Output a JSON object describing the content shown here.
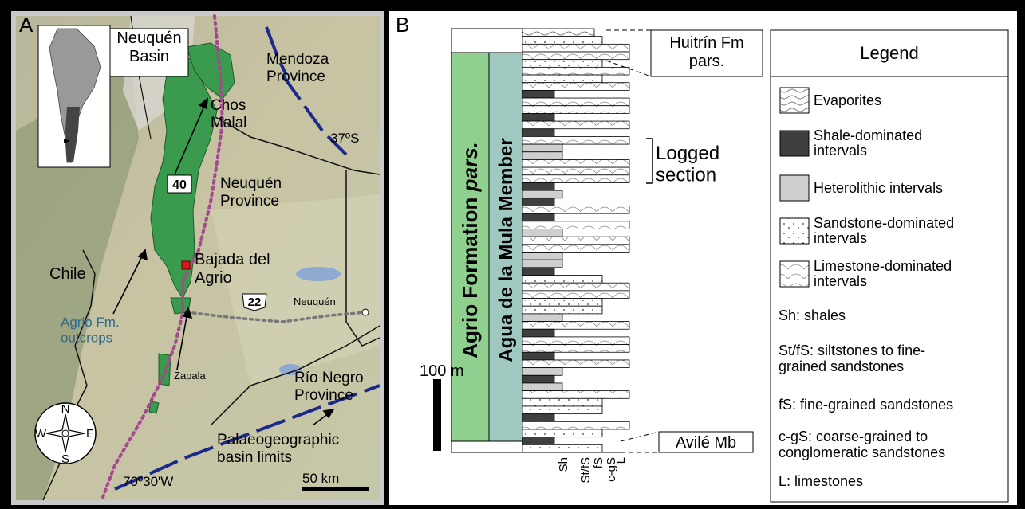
{
  "panel_a": {
    "label": "A",
    "inset_title": "Neuquén\nBasin",
    "place_labels": {
      "mendoza": "Mendoza\nProvince",
      "lat": "37ºS",
      "chos_malal": "Chos\nMalal",
      "route40": "40",
      "neuquen_province": "Neuquén\nProvince",
      "chile": "Chile",
      "bajada": "Bajada del\nAgrio",
      "route22": "22",
      "neuquen_city": "Neuquén",
      "outcrops": "Agrio Fm.\noutcrops",
      "zapala": "Zapala",
      "rio_negro": "Río Negro\nProvince",
      "limits": "Palaeogeographic\nbasin limits",
      "lon": "70º30'W",
      "scale": "50 km"
    },
    "compass": {
      "n": "N",
      "s": "S",
      "e": "E",
      "w": "W"
    },
    "colors": {
      "outcrop": "#3a9a4e",
      "route": "#a24a8c",
      "limit": "#1b2a8a",
      "town": "#d81a1a",
      "lake": "#8faad0"
    }
  },
  "panel_b": {
    "label": "B",
    "formation": "Agrio Formation pars.",
    "member": "Agua de la Mula Member",
    "scale_label": "100 m",
    "top_label": "Huitrín Fm\npars.",
    "bottom_label": "Avilé Mb",
    "logged": "Logged\nsection",
    "grain_axis": [
      "Sh",
      "St/fS",
      "fS",
      "c-gS",
      "L"
    ],
    "legend_title": "Legend",
    "legend_items": [
      {
        "key": "evap",
        "label": "Evaporites"
      },
      {
        "key": "shale",
        "label": "Shale-dominated\nintervals"
      },
      {
        "key": "hetero",
        "label": "Heterolithic intervals"
      },
      {
        "key": "sand",
        "label": "Sandstone-dominated\nintervals"
      },
      {
        "key": "lime",
        "label": "Limestone-dominated\nintervals"
      }
    ],
    "abbreviations": [
      "Sh: shales",
      "St/fS: siltstones to fine-\ngrained sandstones",
      "fS: fine-grained sandstones",
      "c-gS: coarse-grained to\nconglomeratic sandstones",
      "L: limestones"
    ],
    "colors": {
      "formation": "#8fd08f",
      "member": "#9ec8c0",
      "shale": "#3f3f3f",
      "hetero": "#cfcfcf"
    }
  }
}
